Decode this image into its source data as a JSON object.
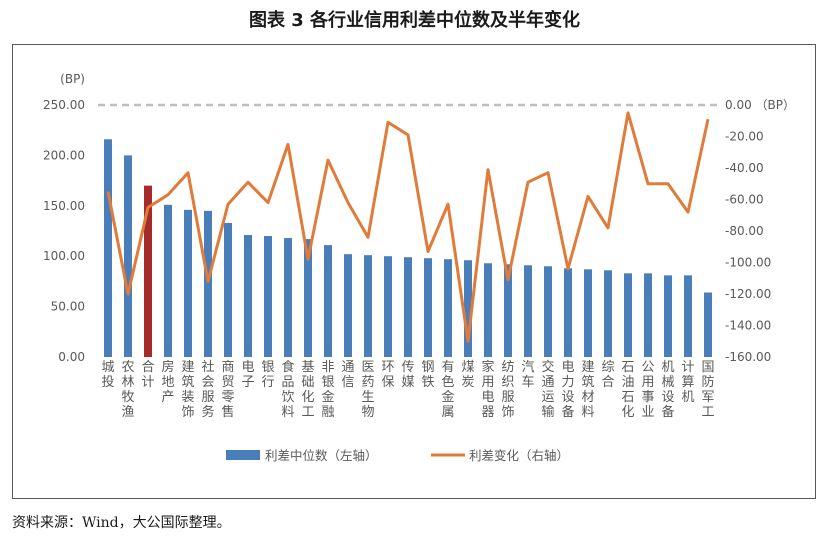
{
  "figure_title": "图表 3  各行业信用利差中位数及半年变化",
  "source_note": "资料来源：Wind，大公国际整理。",
  "colors": {
    "bar": "#4a7ebb",
    "bar_highlight": "#a52a2a",
    "line": "#e07b39",
    "zero_line": "#bfbfbf"
  },
  "chart_data": {
    "type": "bar",
    "categories": [
      "城投",
      "农林牧渔",
      "合计",
      "房地产",
      "建筑装饰",
      "社会服务",
      "商贸零售",
      "电子",
      "银行",
      "食品饮料",
      "基础化工",
      "非银金融",
      "通信",
      "医药生物",
      "环保",
      "传媒",
      "钢铁",
      "有色金属",
      "煤炭",
      "家用电器",
      "纺织服饰",
      "汽车",
      "交通运输",
      "电力设备",
      "建筑材料",
      "综合",
      "石油石化",
      "公用事业",
      "机械设备",
      "计算机",
      "国防军工"
    ],
    "highlight_index": 2,
    "series": [
      {
        "name": "利差中位数（左轴）",
        "axis": "left",
        "type": "bar",
        "values": [
          216,
          200,
          170,
          151,
          146,
          145,
          133,
          121,
          120,
          118,
          117,
          111,
          102,
          101,
          100,
          99,
          98,
          97,
          96,
          93,
          92,
          91,
          90,
          88,
          87,
          86,
          83,
          83,
          81,
          81,
          64
        ]
      },
      {
        "name": "利差变化（右轴）",
        "axis": "right",
        "type": "line",
        "values": [
          -55,
          -120,
          -65,
          -57,
          -43,
          -112,
          -63,
          -49,
          -62,
          -25,
          -98,
          -35,
          -62,
          -84,
          -11,
          -19,
          -93,
          -63,
          -150,
          -41,
          -111,
          -49,
          -43,
          -104,
          -58,
          -78,
          -5,
          -50,
          -50,
          -68,
          -9
        ]
      }
    ],
    "left_axis": {
      "unit": "(BP)",
      "ylim": [
        0,
        250
      ],
      "ticks": [
        "0.00",
        "50.00",
        "100.00",
        "150.00",
        "200.00",
        "250.00"
      ]
    },
    "right_axis": {
      "unit": "(BP)",
      "ylim": [
        -160,
        0
      ],
      "ticks": [
        "-160.00",
        "-140.00",
        "-120.00",
        "-100.00",
        "-80.00",
        "-60.00",
        "-40.00",
        "-20.00",
        "0.00"
      ]
    },
    "right_zero_label": "0.00 （BP）",
    "legend": {
      "position": "bottom",
      "bar_label": "利差中位数（左轴）",
      "line_label": "利差变化（右轴）"
    },
    "grid": false
  }
}
